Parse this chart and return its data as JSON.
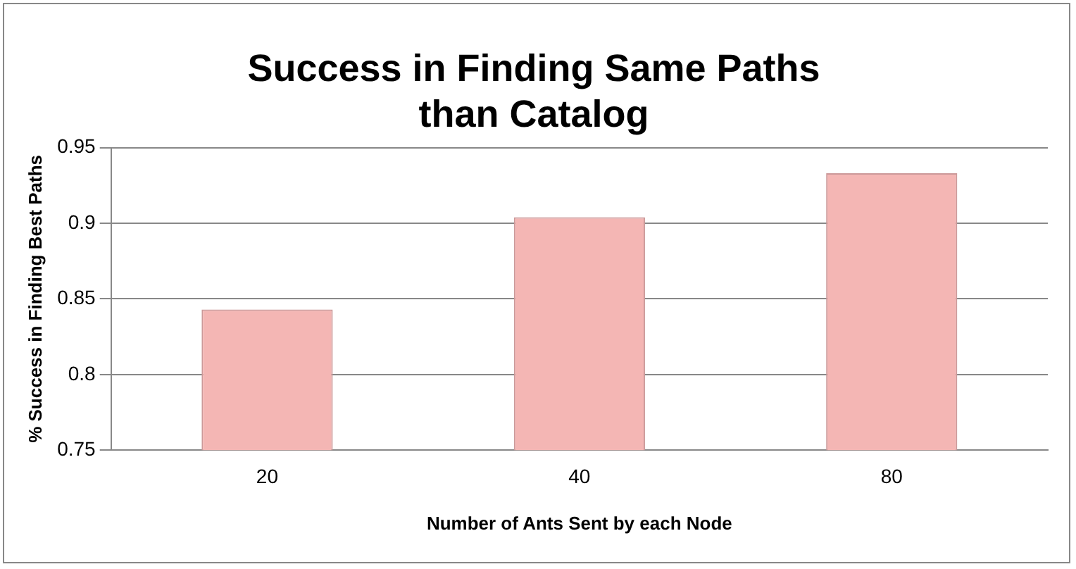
{
  "chart_data": {
    "type": "bar",
    "title": [
      "Success in Finding Same Paths",
      "than Catalog"
    ],
    "xlabel": "Number of Ants Sent by each Node",
    "ylabel": "% Success in Finding Best Paths",
    "categories": [
      "20",
      "40",
      "80"
    ],
    "values": [
      0.843,
      0.904,
      0.933
    ],
    "color": "#f4b6b4",
    "ylim": [
      0.75,
      0.95
    ],
    "yticks": [
      0.75,
      0.8,
      0.85,
      0.9,
      0.95
    ],
    "grid": "y"
  }
}
